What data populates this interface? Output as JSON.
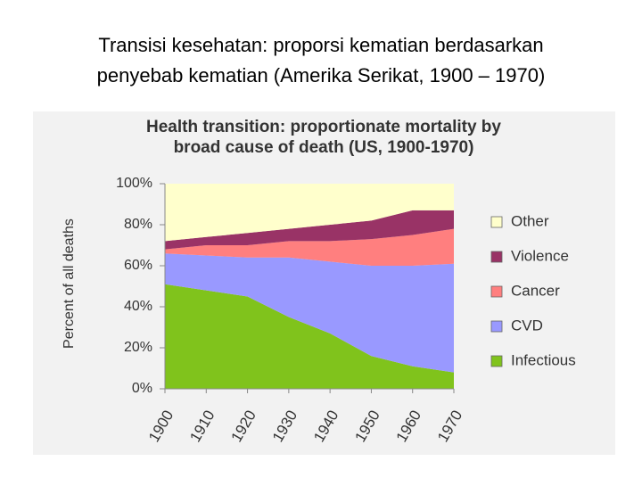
{
  "slide_title": [
    "Transisi kesehatan: proporsi kematian berdasarkan",
    "penyebab kematian (Amerika Serikat, 1900 – 1970)"
  ],
  "chart_data": {
    "type": "stacked-area",
    "title": [
      "Health transition: proportionate mortality by",
      "broad cause of death (US, 1900-1970)"
    ],
    "y_label": "Percent of all deaths",
    "x": [
      1900,
      1910,
      1920,
      1930,
      1940,
      1950,
      1960,
      1970
    ],
    "xlim": [
      1900,
      1970
    ],
    "xticks": [
      1900,
      1910,
      1920,
      1930,
      1940,
      1950,
      1960,
      1970
    ],
    "ylim": [
      0,
      100
    ],
    "yticks": [
      {
        "value": 0,
        "label": "0%"
      },
      {
        "value": 20,
        "label": "20%"
      },
      {
        "value": 40,
        "label": "40%"
      },
      {
        "value": 60,
        "label": "60%"
      },
      {
        "value": 80,
        "label": "80%"
      },
      {
        "value": 100,
        "label": "100%"
      }
    ],
    "series": [
      {
        "name": "Infectious",
        "color": "#80c31c",
        "values": [
          51,
          48,
          45,
          35,
          27,
          16,
          11,
          8
        ]
      },
      {
        "name": "CVD",
        "color": "#9999ff",
        "values": [
          15,
          17,
          19,
          29,
          35,
          44,
          49,
          53
        ]
      },
      {
        "name": "Cancer",
        "color": "#ff7f7f",
        "values": [
          2,
          5,
          6,
          8,
          10,
          13,
          15,
          17
        ]
      },
      {
        "name": "Violence",
        "color": "#993366",
        "values": [
          4,
          4,
          6,
          6,
          8,
          9,
          12,
          9
        ]
      },
      {
        "name": "Other",
        "color": "#ffffcc",
        "values": [
          28,
          26,
          24,
          22,
          20,
          18,
          13,
          13
        ]
      }
    ]
  }
}
